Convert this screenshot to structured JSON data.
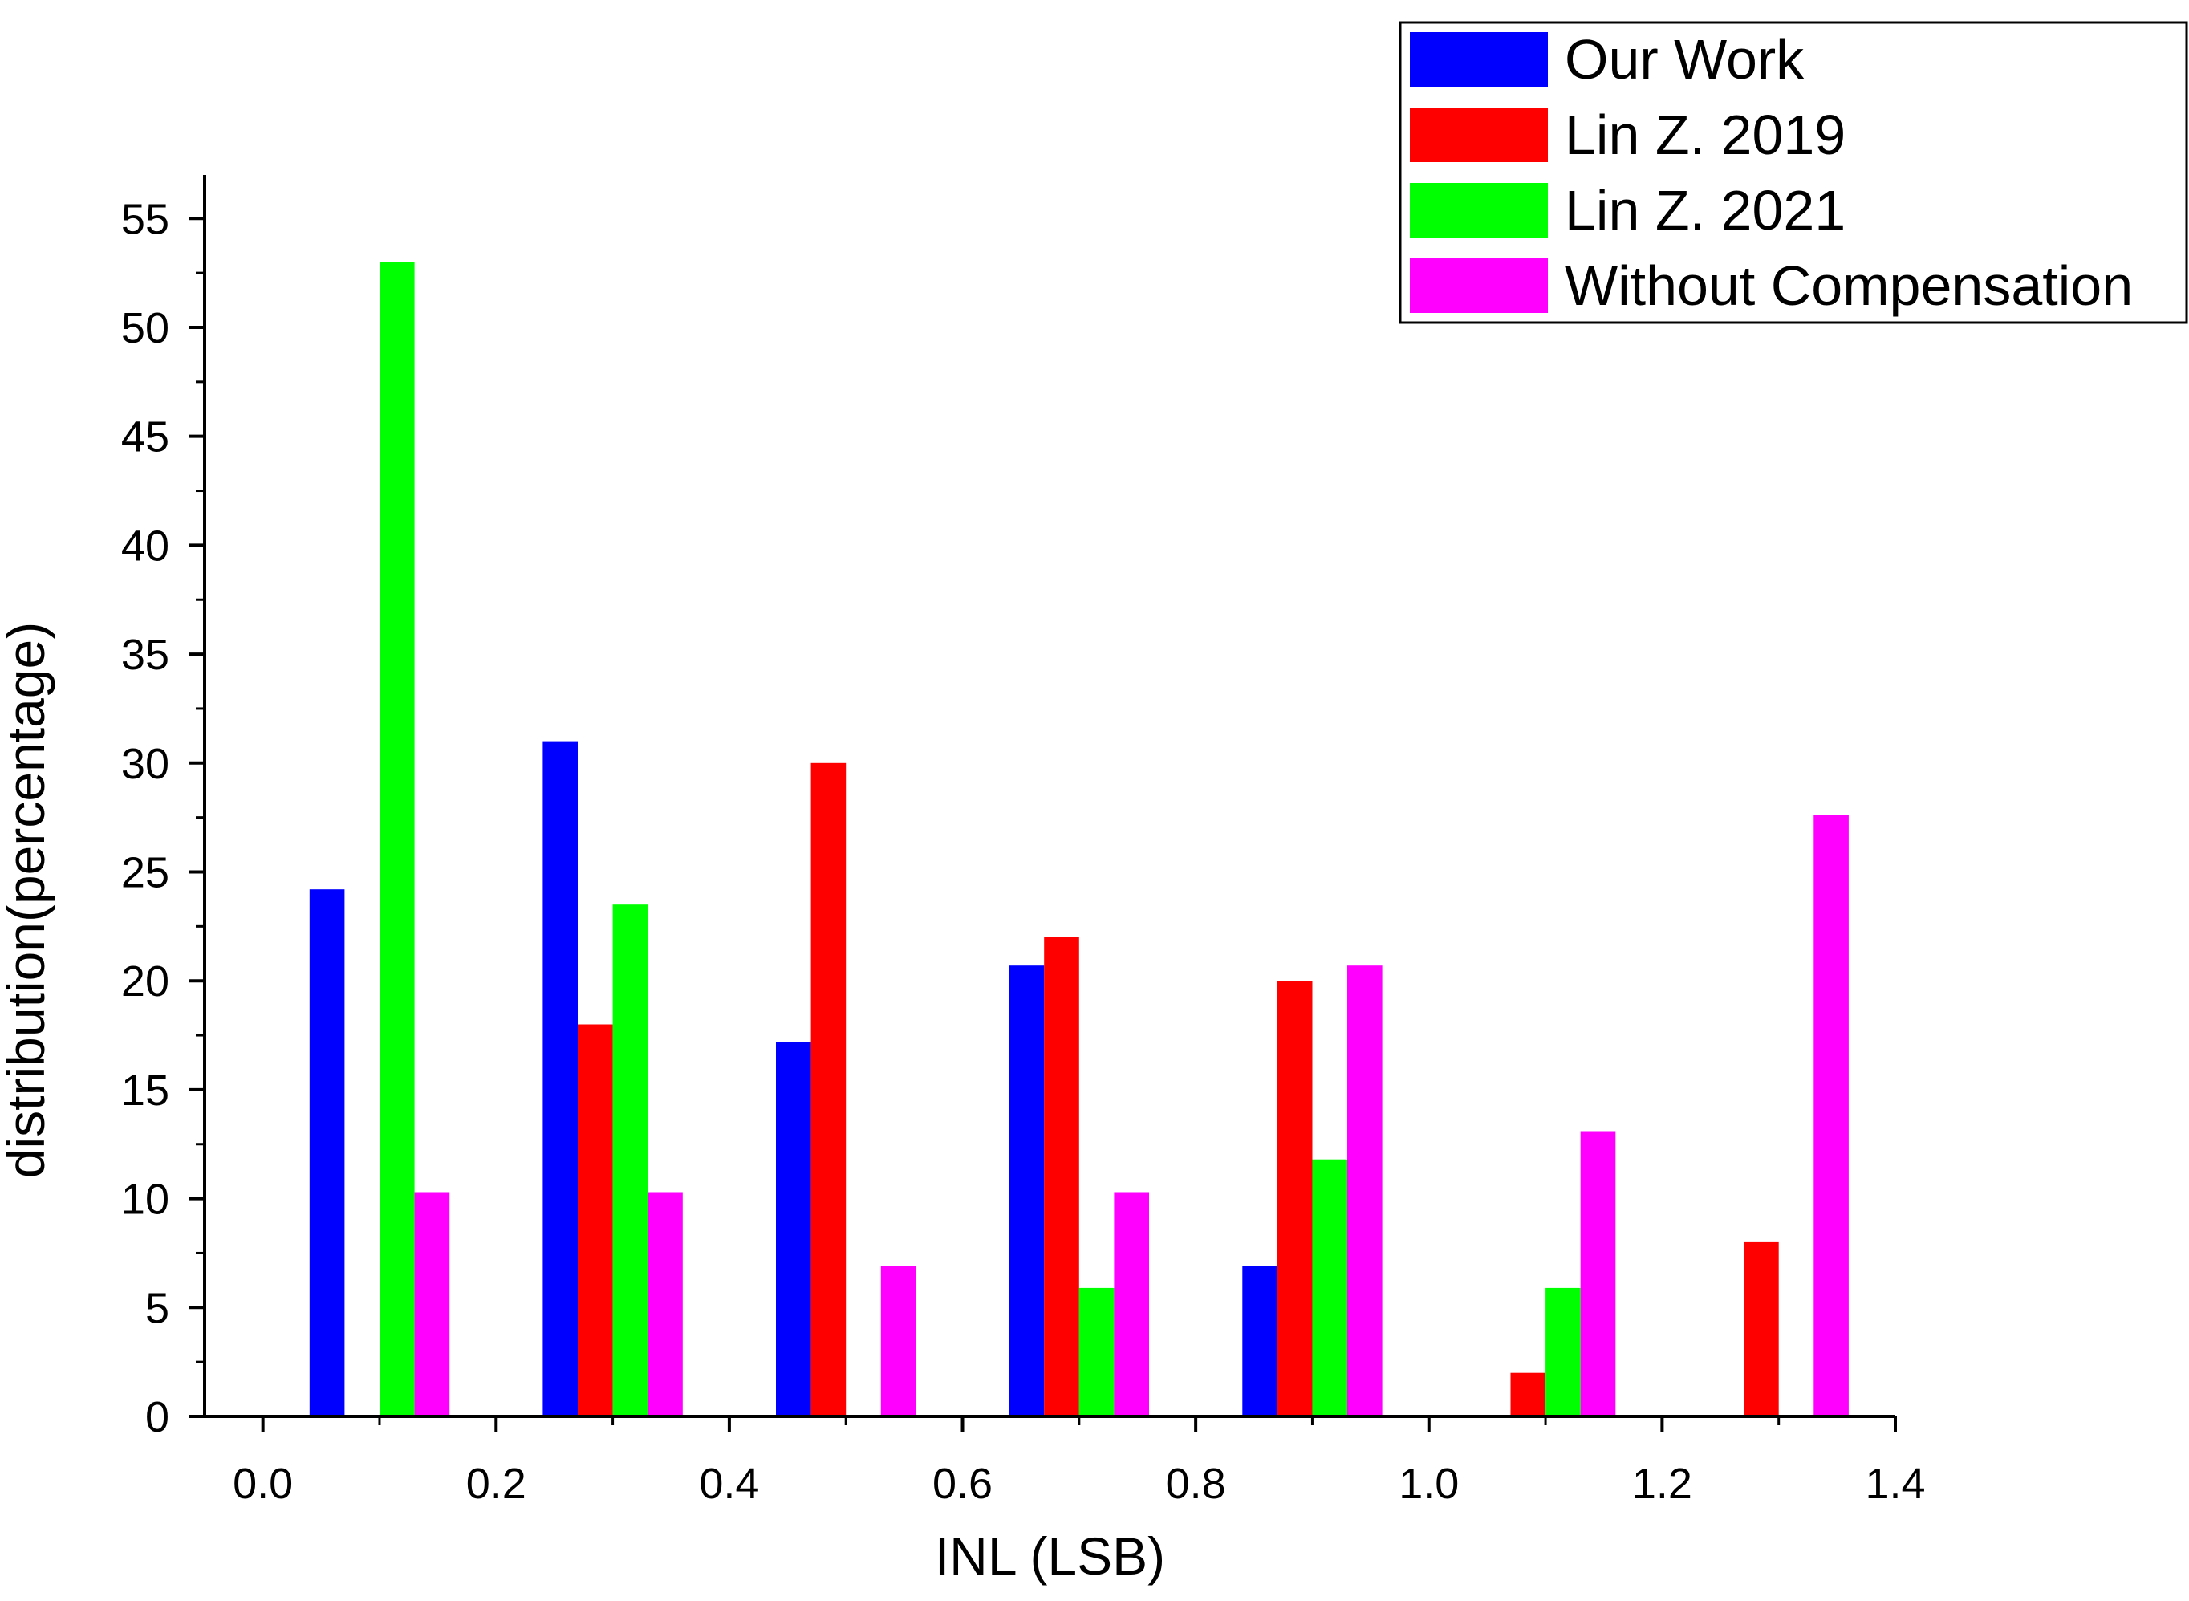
{
  "chart_data": {
    "type": "bar",
    "title": "",
    "xlabel": "INL (LSB)",
    "ylabel": "distribution(percentage)",
    "xlim": [
      -0.05,
      1.4
    ],
    "ylim": [
      0,
      57
    ],
    "x_ticks": [
      "0.0",
      "0.2",
      "0.4",
      "0.6",
      "0.8",
      "1.0",
      "1.2",
      "1.4"
    ],
    "x_tick_values": [
      0,
      0.2,
      0.4,
      0.6,
      0.8,
      1.0,
      1.2,
      1.4
    ],
    "y_ticks": [
      "0",
      "5",
      "10",
      "15",
      "20",
      "25",
      "30",
      "35",
      "40",
      "45",
      "50",
      "55"
    ],
    "y_tick_values": [
      0,
      5,
      10,
      15,
      20,
      25,
      30,
      35,
      40,
      45,
      50,
      55
    ],
    "bin_start": [
      0.0,
      0.2,
      0.4,
      0.6,
      0.8,
      1.0,
      1.2
    ],
    "bin_width": 0.2,
    "legend_position": "top-right",
    "grid": false,
    "series": [
      {
        "name": "Our Work",
        "color": "#0000ff",
        "values": [
          24.2,
          31.0,
          17.2,
          20.7,
          6.9,
          0,
          0
        ]
      },
      {
        "name": "Lin Z. 2019",
        "color": "#ff0000",
        "values": [
          0,
          18.0,
          30.0,
          22.0,
          20.0,
          2.0,
          8.0
        ]
      },
      {
        "name": "Lin Z. 2021",
        "color": "#00ff00",
        "values": [
          53.0,
          23.5,
          0,
          5.9,
          11.8,
          5.9,
          0
        ]
      },
      {
        "name": "Without Compensation",
        "color": "#ff00ff",
        "values": [
          10.3,
          10.3,
          6.9,
          10.3,
          20.7,
          13.1,
          27.6
        ]
      }
    ]
  }
}
